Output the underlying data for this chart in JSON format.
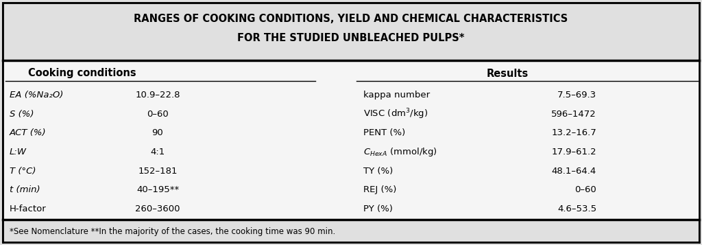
{
  "title_line1": "RANGES OF COOKING CONDITIONS, YIELD AND CHEMICAL CHARACTERISTICS",
  "title_line2": "FOR THE STUDIED UNBLEACHED PULPS*",
  "col_header_left": "Cooking conditions",
  "col_header_right": "Results",
  "left_rows": [
    [
      "EA (%Na₂O)",
      "10.9–22.8"
    ],
    [
      "S (%)",
      "0–60"
    ],
    [
      "ACT (%)",
      "90"
    ],
    [
      "L:W",
      "4:1"
    ],
    [
      "T (°C)",
      "152–181"
    ],
    [
      "t (min)",
      "40–195**"
    ],
    [
      "H-factor",
      "260–3600"
    ]
  ],
  "right_rows": [
    [
      "kappa number",
      "7.5–69.3"
    ],
    [
      "VISC (dm³/kg)",
      "596–1472"
    ],
    [
      "PENT (%)",
      "13.2–16.7"
    ],
    [
      "C_HexA (mmol/kg)",
      "17.9–61.2"
    ],
    [
      "TY (%)",
      "48.1–64.4"
    ],
    [
      "REJ (%)",
      "0–60"
    ],
    [
      "PY (%)",
      "4.6–53.5"
    ]
  ],
  "footnote": "*See Nomenclature **In the majority of the cases, the cooking time was 90 min.",
  "bg_color": "#e0e0e0",
  "inner_bg": "#f5f5f5",
  "title_fontsize": 10.5,
  "header_fontsize": 10.5,
  "body_fontsize": 9.5,
  "footnote_fontsize": 8.5,
  "italic_labels": [
    "EA (%Na₂O)",
    "S (%)",
    "ACT (%)",
    "L:W",
    "T (°C)",
    "t (min)"
  ]
}
